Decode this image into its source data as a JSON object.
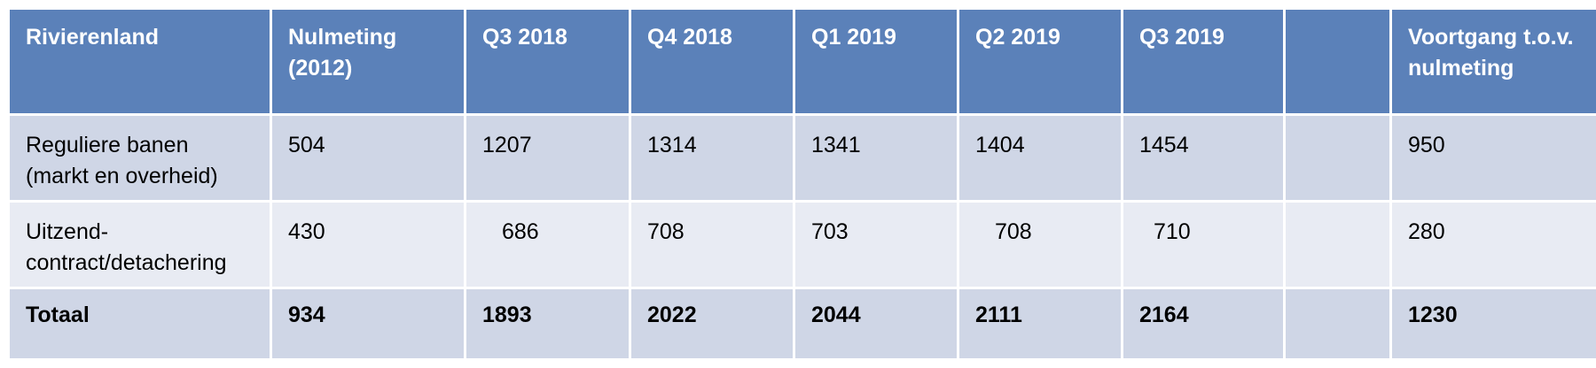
{
  "table": {
    "headers": [
      "Rivierenland",
      "Nulmeting (2012)",
      "Q3 2018",
      "Q4 2018",
      "Q1 2019",
      "Q2 2019",
      "Q3 2019",
      "",
      "Voortgang t.o.v. nulmeting"
    ],
    "rows": [
      {
        "label_line1": "Reguliere banen",
        "label_line2": "(markt en overheid)",
        "values": [
          "504",
          "1207",
          "1314",
          "1341",
          "1404",
          "1454",
          "",
          "950"
        ]
      },
      {
        "label_line1": "Uitzend-",
        "label_line2": "contract/detachering",
        "values": [
          "430",
          "686",
          "708",
          "703",
          "708",
          "710",
          "",
          "280"
        ]
      },
      {
        "label": "Totaal",
        "values": [
          "934",
          "1893",
          "2022",
          "2044",
          "2111",
          "2164",
          "",
          "1230"
        ]
      }
    ]
  },
  "colors": {
    "header_bg": "#5b81b9",
    "row_dark": "#cfd6e6",
    "row_light": "#e8ebf3"
  }
}
